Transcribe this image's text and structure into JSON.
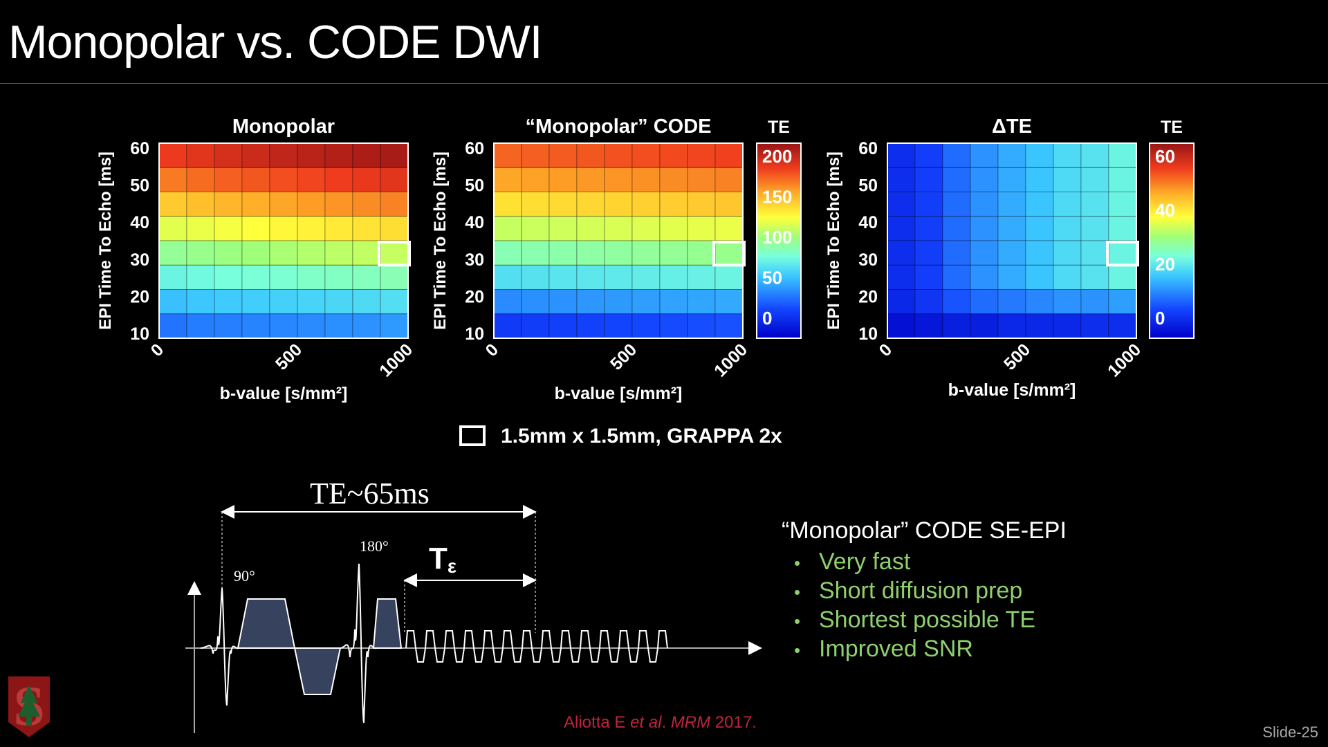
{
  "slide": {
    "title": "Monopolar vs. CODE DWI",
    "slide_number": "Slide-25",
    "legend_label": "1.5mm x 1.5mm, GRAPPA 2x",
    "citation": {
      "authors": "Aliotta E",
      "etal": "et al",
      "dot": ". ",
      "journal": "MRM",
      "year": " 2017."
    },
    "logo_letter": "S"
  },
  "diagram": {
    "te_label": "TE~65ms",
    "pulse_90": "90°",
    "pulse_180": "180°",
    "t_eps": "T",
    "t_eps_sub": "ε"
  },
  "info": {
    "heading": "“Monopolar” CODE SE-EPI",
    "bullets": [
      "Very fast",
      "Short diffusion prep",
      "Shortest possible TE",
      "Improved SNR"
    ]
  },
  "chart_data": [
    {
      "type": "heatmap",
      "title": "Monopolar",
      "xlabel": "b-value [s/mm²]",
      "ylabel": "EPI Time To Echo [ms]",
      "x_ticks": [
        "0",
        "500",
        "1000"
      ],
      "y_ticks": [
        "60",
        "50",
        "40",
        "30",
        "20",
        "10"
      ],
      "xlim": [
        0,
        1000
      ],
      "ylim": [
        10,
        60
      ],
      "rows": 8,
      "cols": 9,
      "clim": [
        0,
        200
      ],
      "colorbar": "shared with “Monopolar” CODE (TE)",
      "highlight": {
        "row": 4,
        "col": 8
      },
      "values": [
        [
          175,
          178,
          182,
          185,
          188,
          190,
          192,
          194,
          195
        ],
        [
          160,
          163,
          166,
          168,
          170,
          172,
          174,
          176,
          178
        ],
        [
          140,
          143,
          146,
          148,
          150,
          152,
          154,
          156,
          158
        ],
        [
          118,
          120,
          122,
          124,
          126,
          128,
          130,
          132,
          134
        ],
        [
          98,
          100,
          102,
          104,
          106,
          108,
          110,
          111,
          112
        ],
        [
          80,
          82,
          84,
          85,
          86,
          88,
          89,
          90,
          92
        ],
        [
          62,
          64,
          65,
          66,
          67,
          68,
          69,
          70,
          72
        ],
        [
          42,
          44,
          45,
          46,
          47,
          48,
          49,
          50,
          52
        ]
      ]
    },
    {
      "type": "heatmap",
      "title": "“Monopolar” CODE",
      "xlabel": "b-value [s/mm²]",
      "ylabel": "EPI Time To Echo [ms]",
      "x_ticks": [
        "0",
        "500",
        "1000"
      ],
      "y_ticks": [
        "60",
        "50",
        "40",
        "30",
        "20",
        "10"
      ],
      "xlim": [
        0,
        1000
      ],
      "ylim": [
        10,
        60
      ],
      "rows": 8,
      "cols": 9,
      "clim": [
        0,
        200
      ],
      "colorbar_title": "TE",
      "colorbar_ticks": [
        "200",
        "150",
        "100",
        "50",
        "0"
      ],
      "highlight": {
        "row": 4,
        "col": 8
      },
      "values": [
        [
          165,
          166,
          167,
          168,
          169,
          170,
          171,
          172,
          173
        ],
        [
          150,
          151,
          152,
          153,
          154,
          155,
          156,
          157,
          158
        ],
        [
          133,
          134,
          135,
          136,
          137,
          138,
          139,
          140,
          141
        ],
        [
          112,
          113,
          114,
          115,
          116,
          117,
          118,
          119,
          120
        ],
        [
          92,
          93,
          94,
          95,
          96,
          97,
          98,
          99,
          100
        ],
        [
          72,
          73,
          74,
          75,
          76,
          77,
          78,
          79,
          80
        ],
        [
          48,
          49,
          50,
          51,
          52,
          53,
          54,
          55,
          56
        ],
        [
          25,
          26,
          27,
          28,
          29,
          30,
          31,
          32,
          33
        ]
      ]
    },
    {
      "type": "heatmap",
      "title": "ΔTE",
      "xlabel": "b-value [s/mm²]",
      "ylabel": "EPI Time To Echo [ms]",
      "x_ticks": [
        "0",
        "500",
        "1000"
      ],
      "y_ticks": [
        "60",
        "50",
        "40",
        "30",
        "20",
        "10"
      ],
      "xlim": [
        0,
        1000
      ],
      "ylim": [
        10,
        60
      ],
      "rows": 8,
      "cols": 9,
      "clim": [
        0,
        60
      ],
      "colorbar_title": "TE",
      "colorbar_ticks": [
        "60",
        "40",
        "20",
        "0"
      ],
      "highlight": {
        "row": 4,
        "col": 8
      },
      "values": [
        [
          6,
          8,
          12,
          15,
          17,
          19,
          21,
          22,
          24
        ],
        [
          6,
          8,
          12,
          15,
          17,
          19,
          21,
          22,
          24
        ],
        [
          6,
          8,
          12,
          15,
          17,
          19,
          21,
          22,
          24
        ],
        [
          6,
          8,
          12,
          15,
          17,
          19,
          21,
          22,
          24
        ],
        [
          6,
          8,
          12,
          15,
          17,
          19,
          21,
          22,
          24
        ],
        [
          6,
          8,
          12,
          15,
          17,
          19,
          21,
          22,
          24
        ],
        [
          5,
          7,
          10,
          12,
          13,
          14,
          15,
          15,
          16
        ],
        [
          2,
          3,
          4,
          4,
          5,
          5,
          5,
          6,
          6
        ]
      ]
    }
  ]
}
